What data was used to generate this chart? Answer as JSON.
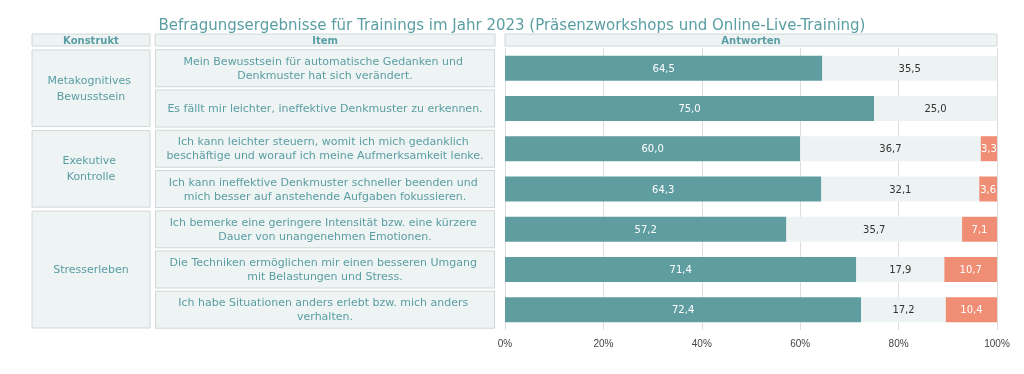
{
  "chart_data": {
    "type": "bar",
    "orientation": "horizontal",
    "stacked": true,
    "title": "Befragungsergebnisse für Trainings im Jahr 2023 (Präsenzworkshops und Online-Live-Training)",
    "categories": [
      "Mein Bewusstsein für automatische Gedanken und Denkmuster hat sich verändert.",
      "Es fällt mir leichter, ineffektive Denkmuster zu erkennen.",
      "Ich kann leichter steuern, womit ich mich gedanklich beschäftige und worauf ich meine Aufmerksamkeit lenke.",
      "Ich kann ineffektive Denkmuster schneller beenden und mich besser auf anstehende Aufgaben fokussieren.",
      "Ich bemerke eine geringere Intensität bzw. eine kürzere Dauer von unangenehmen Emotionen.",
      "Die Techniken ermöglichen mir einen besseren Umgang mit Belastungen und Stress.",
      "Ich habe Situationen anders erlebt bzw. mich anders verhalten."
    ],
    "series": [
      {
        "color": "#5f9da1",
        "values": [
          64.5,
          75.0,
          60.0,
          64.3,
          57.2,
          71.4,
          72.4
        ],
        "value_labels": [
          "64,5",
          "75,0",
          "60,0",
          "64,3",
          "57,2",
          "71,4",
          "72,4"
        ]
      },
      {
        "color": "#edf3f3",
        "values": [
          35.5,
          25.0,
          36.7,
          32.1,
          35.7,
          17.9,
          17.2
        ],
        "value_labels": [
          "35,5",
          "25,0",
          "36,7",
          "32,1",
          "35,7",
          "17,9",
          "17,2"
        ]
      },
      {
        "color": "#f08e75",
        "values": [
          null,
          null,
          3.3,
          3.6,
          7.1,
          10.7,
          10.4
        ],
        "value_labels": [
          null,
          null,
          "3,3",
          "3,6",
          "7,1",
          "10,7",
          "10,4"
        ]
      }
    ],
    "xlim": [
      0,
      100
    ],
    "xticks": [
      {
        "value": 0,
        "label": "0%"
      },
      {
        "value": 20,
        "label": "20%"
      },
      {
        "value": 40,
        "label": "40%"
      },
      {
        "value": 60,
        "label": "60%"
      },
      {
        "value": 80,
        "label": "80%"
      },
      {
        "value": 100,
        "label": "100%"
      }
    ],
    "grid": "x",
    "annotations": [
      "Konstrukt",
      "Item",
      "Antworten",
      "Metakognitives Bewusstsein",
      "Exekutive Kontrolle",
      "Stresserleben"
    ]
  }
}
